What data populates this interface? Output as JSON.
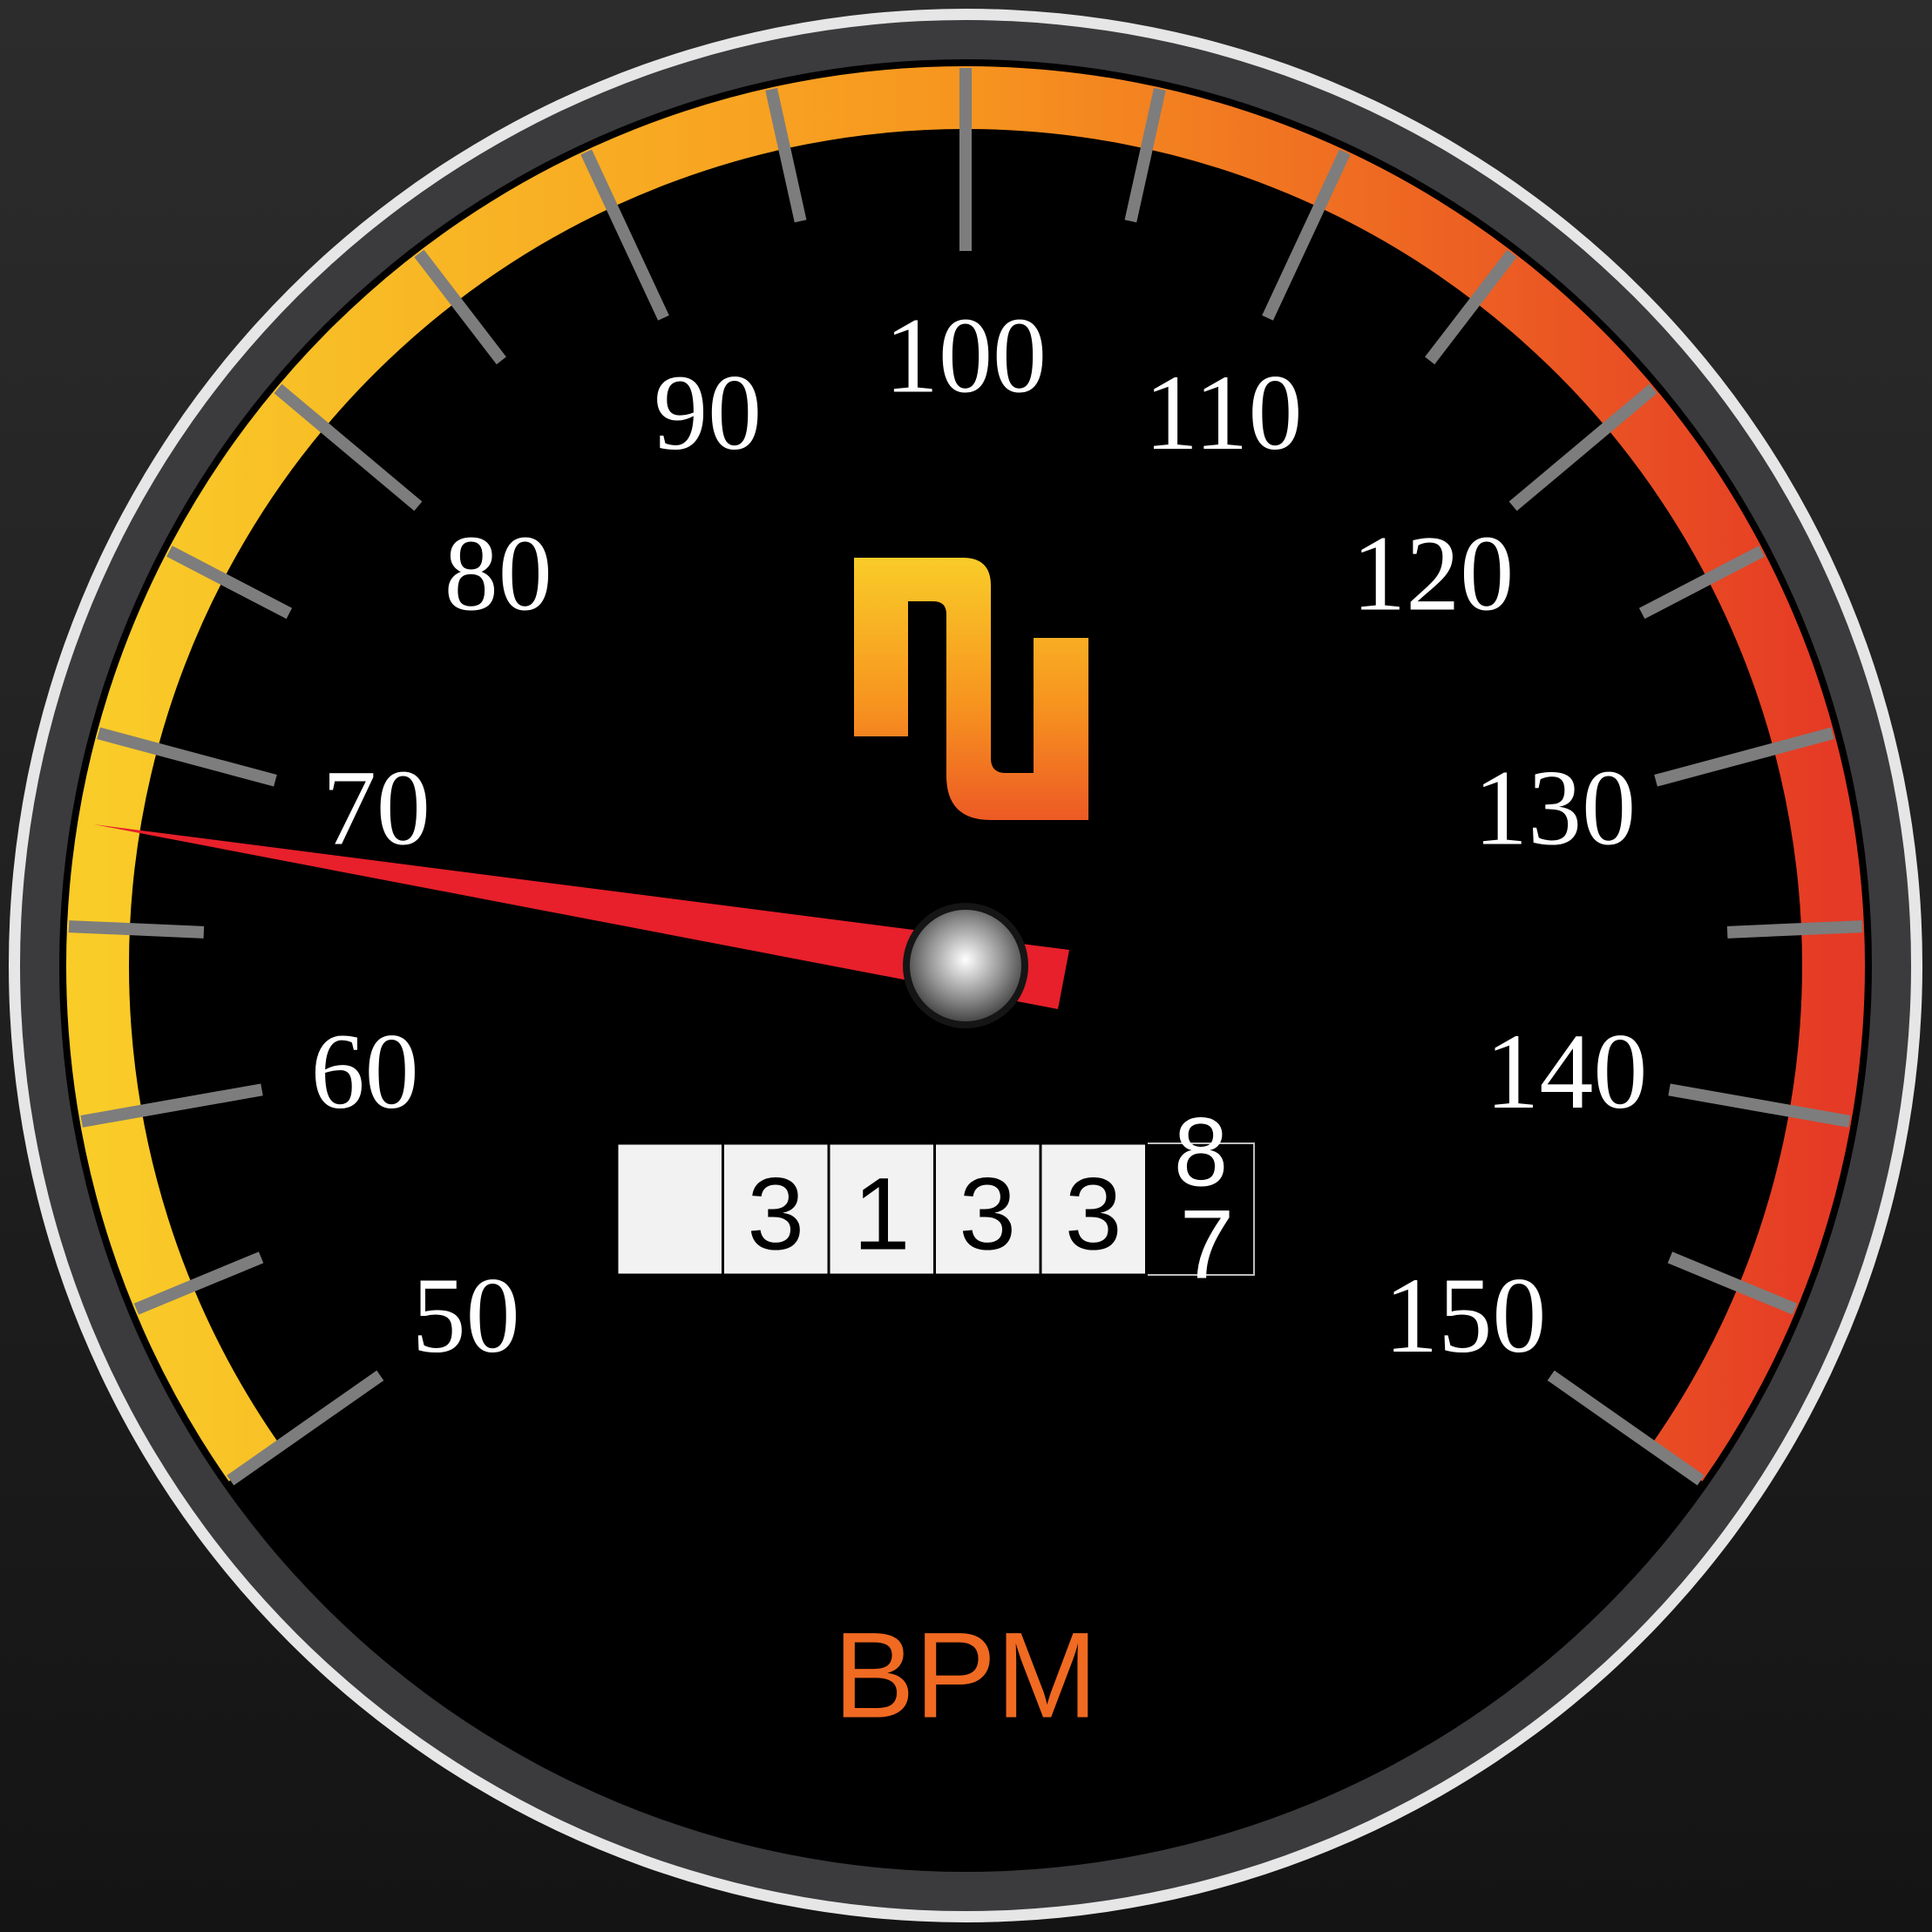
{
  "gauge": {
    "unit": "BPM",
    "scale_min": 40,
    "scale_max": 160,
    "labels": [
      "50",
      "60",
      "70",
      "80",
      "90",
      "100",
      "110",
      "120",
      "130",
      "140",
      "150"
    ],
    "needle_value": 72,
    "odometer": {
      "digits": [
        "",
        "3",
        "1",
        "3",
        "3"
      ],
      "rolling_upper": "8",
      "rolling_lower": "7"
    },
    "logo_icon": "squarewave-logo-icon",
    "colors": {
      "arc_start": "#f9cc28",
      "arc_mid": "#f7951f",
      "arc_end": "#e53a25",
      "needle": "#e7202b",
      "tick": "#7d7d7d",
      "bezel": "#3b3b3d"
    }
  }
}
